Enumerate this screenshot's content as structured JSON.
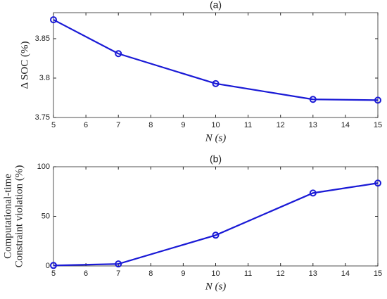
{
  "chart_data": [
    {
      "type": "line",
      "title": "(a)",
      "xlabel": "N (s)",
      "ylabel": [
        "Δ SOC (%)"
      ],
      "x": [
        5,
        7,
        10,
        13,
        15
      ],
      "values": [
        3.874,
        3.831,
        3.793,
        3.773,
        3.772
      ],
      "color": "#1a1ad6",
      "xlim": [
        5,
        15
      ],
      "xticks": [
        5,
        6,
        7,
        8,
        9,
        10,
        11,
        12,
        13,
        14,
        15
      ],
      "ylim": [
        3.75,
        3.883
      ],
      "yticks": [
        3.75,
        3.8,
        3.85
      ]
    },
    {
      "type": "line",
      "title": "(b)",
      "xlabel": "N (s)",
      "ylabel": [
        "Computational-time",
        "Constraint violation (%)"
      ],
      "x": [
        5,
        7,
        10,
        13,
        15
      ],
      "values": [
        0.5,
        2,
        31,
        73.5,
        83.5
      ],
      "color": "#1a1ad6",
      "xlim": [
        5,
        15
      ],
      "xticks": [
        5,
        6,
        7,
        8,
        9,
        10,
        11,
        12,
        13,
        14,
        15
      ],
      "ylim": [
        0,
        100
      ],
      "yticks": [
        0,
        50,
        100
      ]
    }
  ]
}
